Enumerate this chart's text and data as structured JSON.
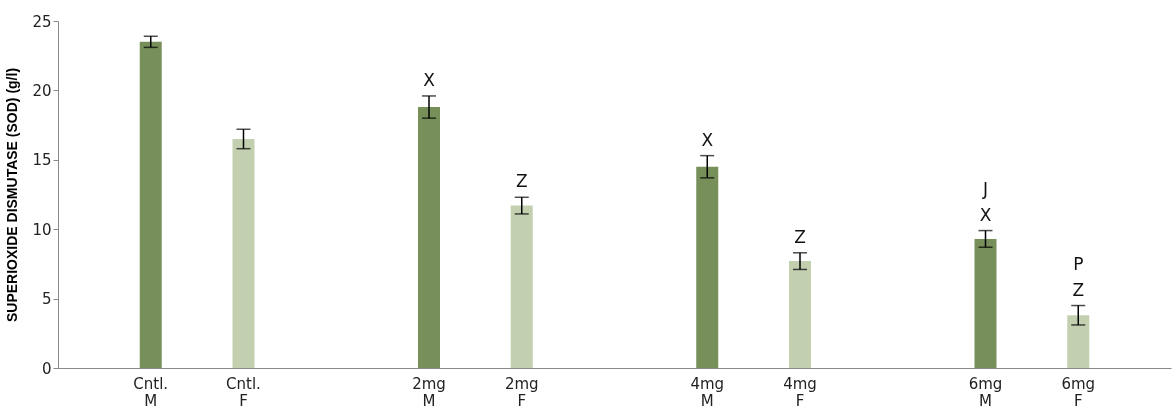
{
  "chart_data": {
    "type": "bar",
    "ylabel": "SUPERIOXIDE DISMUTASE (SOD) (g/l)",
    "categories": [
      "Cntl.\nM",
      "Cntl.\nF",
      null,
      "2mg\nM",
      "2mg\nF",
      null,
      "4mg\nM",
      "4mg\nF",
      null,
      "6mg\nM",
      "6mg\nF"
    ],
    "values": [
      23.5,
      16.5,
      null,
      18.8,
      11.7,
      null,
      14.5,
      7.7,
      null,
      9.3,
      3.8
    ],
    "errors": [
      0.4,
      0.7,
      null,
      0.8,
      0.6,
      null,
      0.8,
      0.6,
      null,
      0.6,
      0.7
    ],
    "colors": [
      "#77905a",
      "#c3d0b0",
      null,
      "#77905a",
      "#c3d0b0",
      null,
      "#77905a",
      "#c3d0b0",
      null,
      "#77905a",
      "#c3d0b0"
    ],
    "ylim": [
      0,
      25
    ],
    "yticks": [
      0,
      5,
      10,
      15,
      20,
      25
    ],
    "grid": false,
    "annotations": [
      {
        "text": "X",
        "x": "2mg\nM",
        "y": 18.8
      },
      {
        "text": "Z",
        "x": "2mg\nF",
        "y": 11.7
      },
      {
        "text": "X",
        "x": "4mg\nM",
        "y": 14.5
      },
      {
        "text": "Z",
        "x": "4mg\nF",
        "y": 7.7
      },
      {
        "text": "J",
        "x": "6mg\nM",
        "y": 9.3
      },
      {
        "text": "X",
        "x": "6mg\nM",
        "y": 9.3
      },
      {
        "text": "P",
        "x": "6mg\nF",
        "y": 3.8
      },
      {
        "text": "Z",
        "x": "6mg\nF",
        "y": 3.8
      }
    ]
  }
}
